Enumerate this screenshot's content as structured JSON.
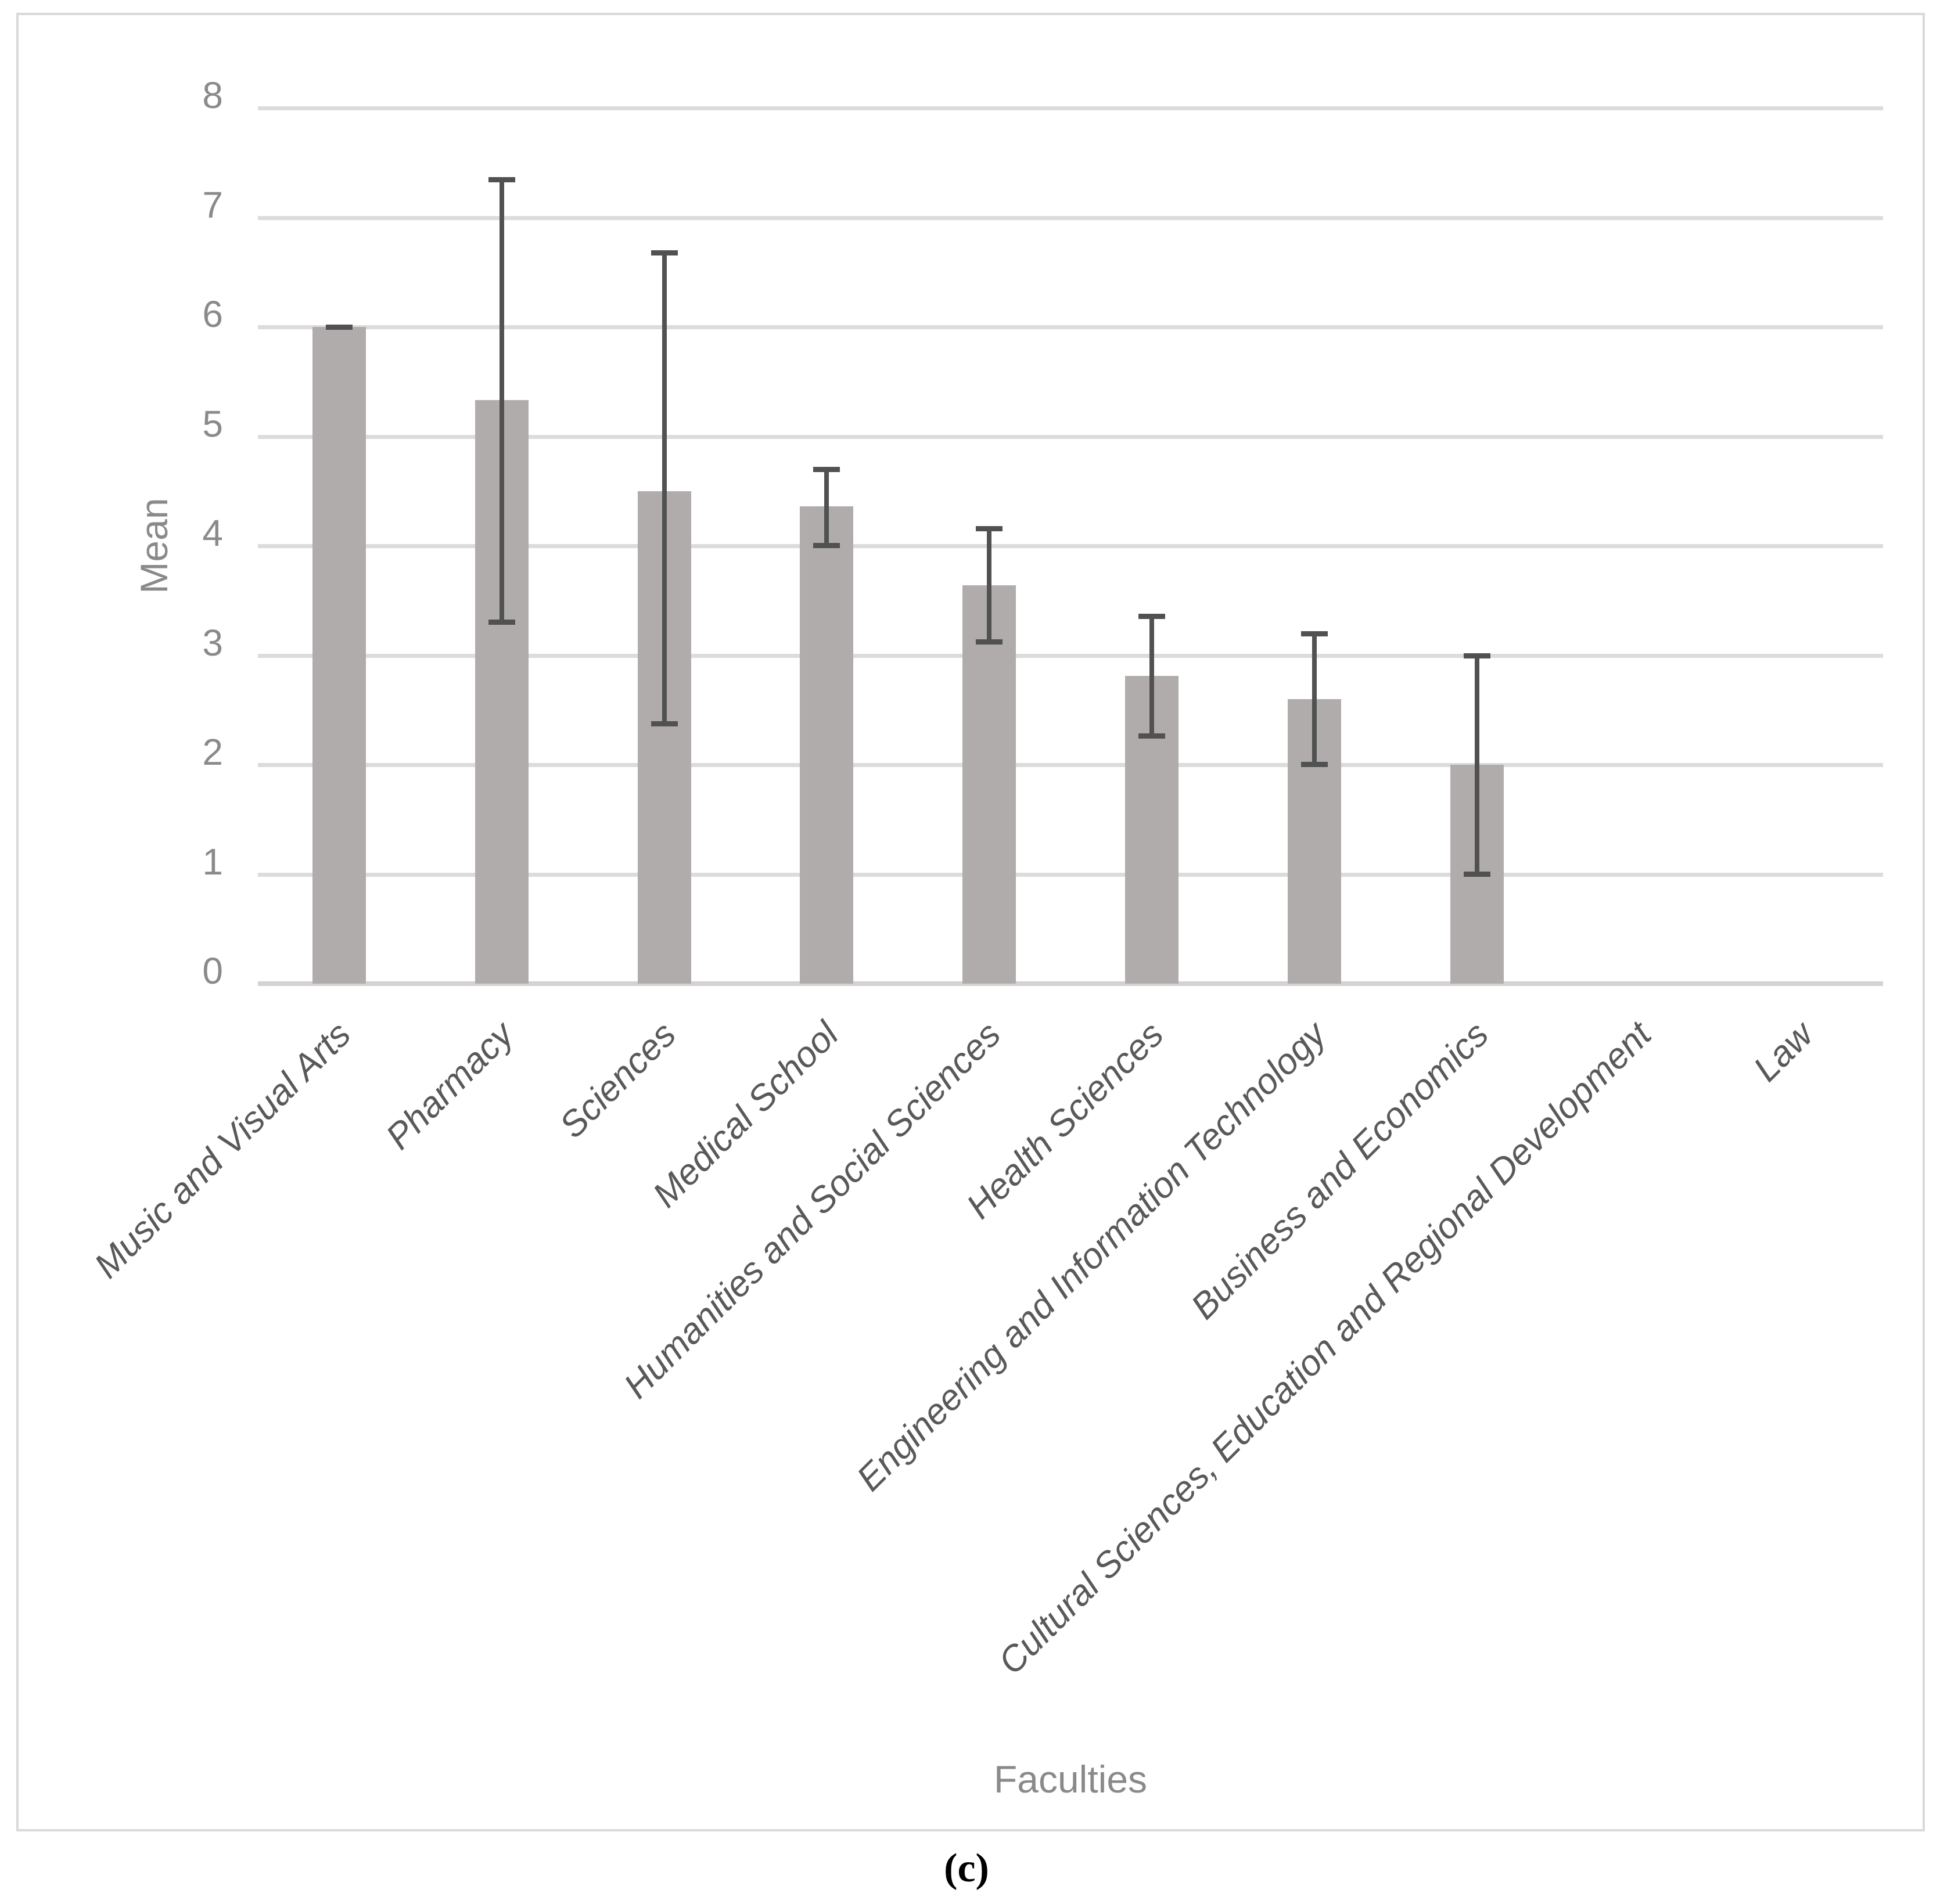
{
  "figure": {
    "caption": "(c)"
  },
  "chart_data": {
    "type": "bar",
    "title": "",
    "xlabel": "Faculties",
    "ylabel": "Mean",
    "ylim": [
      0,
      8
    ],
    "yticks": [
      8,
      7,
      6,
      5,
      4,
      3,
      2,
      1,
      0
    ],
    "grid": true,
    "legend": "none",
    "bar_color": "#b0acab",
    "error_color": "#515151",
    "gridline_color": "#dcdcdc",
    "axis_line_color": "#d4d2d2",
    "tick_text_color": "#8a8a8a",
    "category_text_color": "#595959",
    "categories": [
      "Music and Visual Arts",
      "Pharmacy",
      "Sciences",
      "Medical School",
      "Humanities and Social Sciences",
      "Health Sciences",
      "Engineering and Information Technology",
      "Business and Economics",
      "Cultural Sciences, Education and Regional Development",
      "Law"
    ],
    "series": [
      {
        "name": "Mean",
        "values": [
          6.0,
          5.33,
          4.5,
          4.36,
          3.64,
          2.81,
          2.6,
          2.0,
          0,
          0
        ]
      }
    ],
    "error_low": [
      6.0,
      3.3,
      2.37,
      4.0,
      3.12,
      2.26,
      2.0,
      1.0,
      null,
      null
    ],
    "error_high": [
      6.0,
      7.35,
      6.68,
      4.7,
      4.16,
      3.36,
      3.2,
      3.0,
      null,
      null
    ]
  }
}
